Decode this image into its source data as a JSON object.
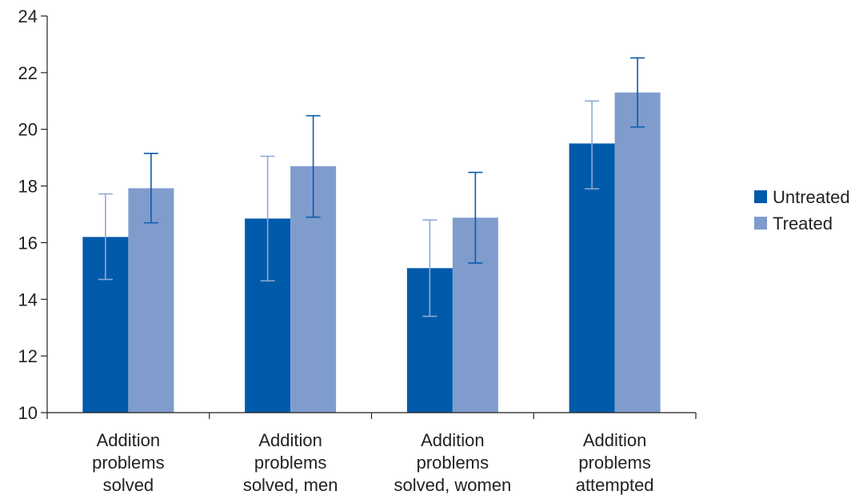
{
  "chart_data": {
    "type": "bar",
    "categories": [
      [
        "Addition",
        "problems",
        "solved"
      ],
      [
        "Addition",
        "problems",
        "solved, men"
      ],
      [
        "Addition",
        "problems",
        "solved, women"
      ],
      [
        "Addition",
        "problems",
        "attempted"
      ]
    ],
    "series": [
      {
        "name": "Untreated",
        "color": "#005aaa",
        "values": [
          16.2,
          16.85,
          15.1,
          19.5
        ],
        "error_low": [
          14.7,
          14.65,
          13.4,
          17.9
        ],
        "error_high": [
          17.72,
          19.05,
          16.8,
          21.0
        ]
      },
      {
        "name": "Treated",
        "color": "#7f9ccd",
        "values": [
          17.92,
          18.7,
          16.88,
          21.3
        ],
        "error_low": [
          16.7,
          16.9,
          15.28,
          20.08
        ],
        "error_high": [
          19.15,
          20.48,
          18.48,
          22.52
        ]
      }
    ],
    "ylim": [
      10,
      24
    ],
    "yticks": [
      10,
      12,
      14,
      16,
      18,
      20,
      22,
      24
    ],
    "title": "",
    "xlabel": "",
    "ylabel": "",
    "legend_position": "right",
    "grid": false
  }
}
